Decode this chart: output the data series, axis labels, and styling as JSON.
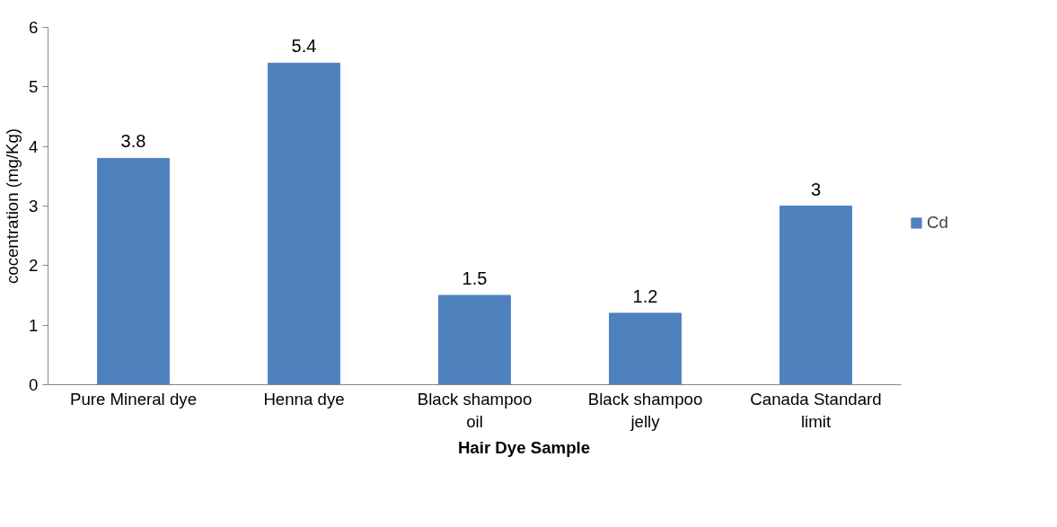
{
  "chart_data": {
    "type": "bar",
    "xlabel": "Hair Dye Sample",
    "ylabel": "cocentration (mg/Kg)",
    "categories": [
      "Pure Mineral dye",
      "Henna dye",
      "Black shampoo oil",
      "Black shampoo jelly",
      "Canada Standard limit"
    ],
    "series": [
      {
        "name": "Cd",
        "color": "#4f81bd",
        "values": [
          3.8,
          5.4,
          1.5,
          1.2,
          3
        ]
      }
    ],
    "ylim": [
      0,
      6
    ],
    "yticks": [
      0,
      1,
      2,
      3,
      4,
      5,
      6
    ],
    "grid": false,
    "legend": "right",
    "data_labels": true
  }
}
